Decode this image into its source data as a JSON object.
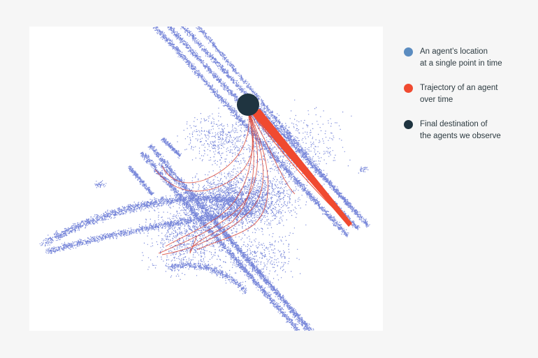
{
  "legend": {
    "items": [
      {
        "label": "An agent’s location\nat a single point in time",
        "color": "#5b8cc0",
        "icon": "circle-icon"
      },
      {
        "label": "Trajectory of an agent\nover time",
        "color": "#f04a30",
        "icon": "circle-icon"
      },
      {
        "label": "Final destination of\nthe agents we observe",
        "color": "#1f3440",
        "icon": "circle-icon"
      }
    ]
  },
  "colors": {
    "points": "#4a5ecc",
    "trajectory": "#f04a30",
    "thin_trajectory": "#d63a2a",
    "destination": "#1f3440"
  }
}
